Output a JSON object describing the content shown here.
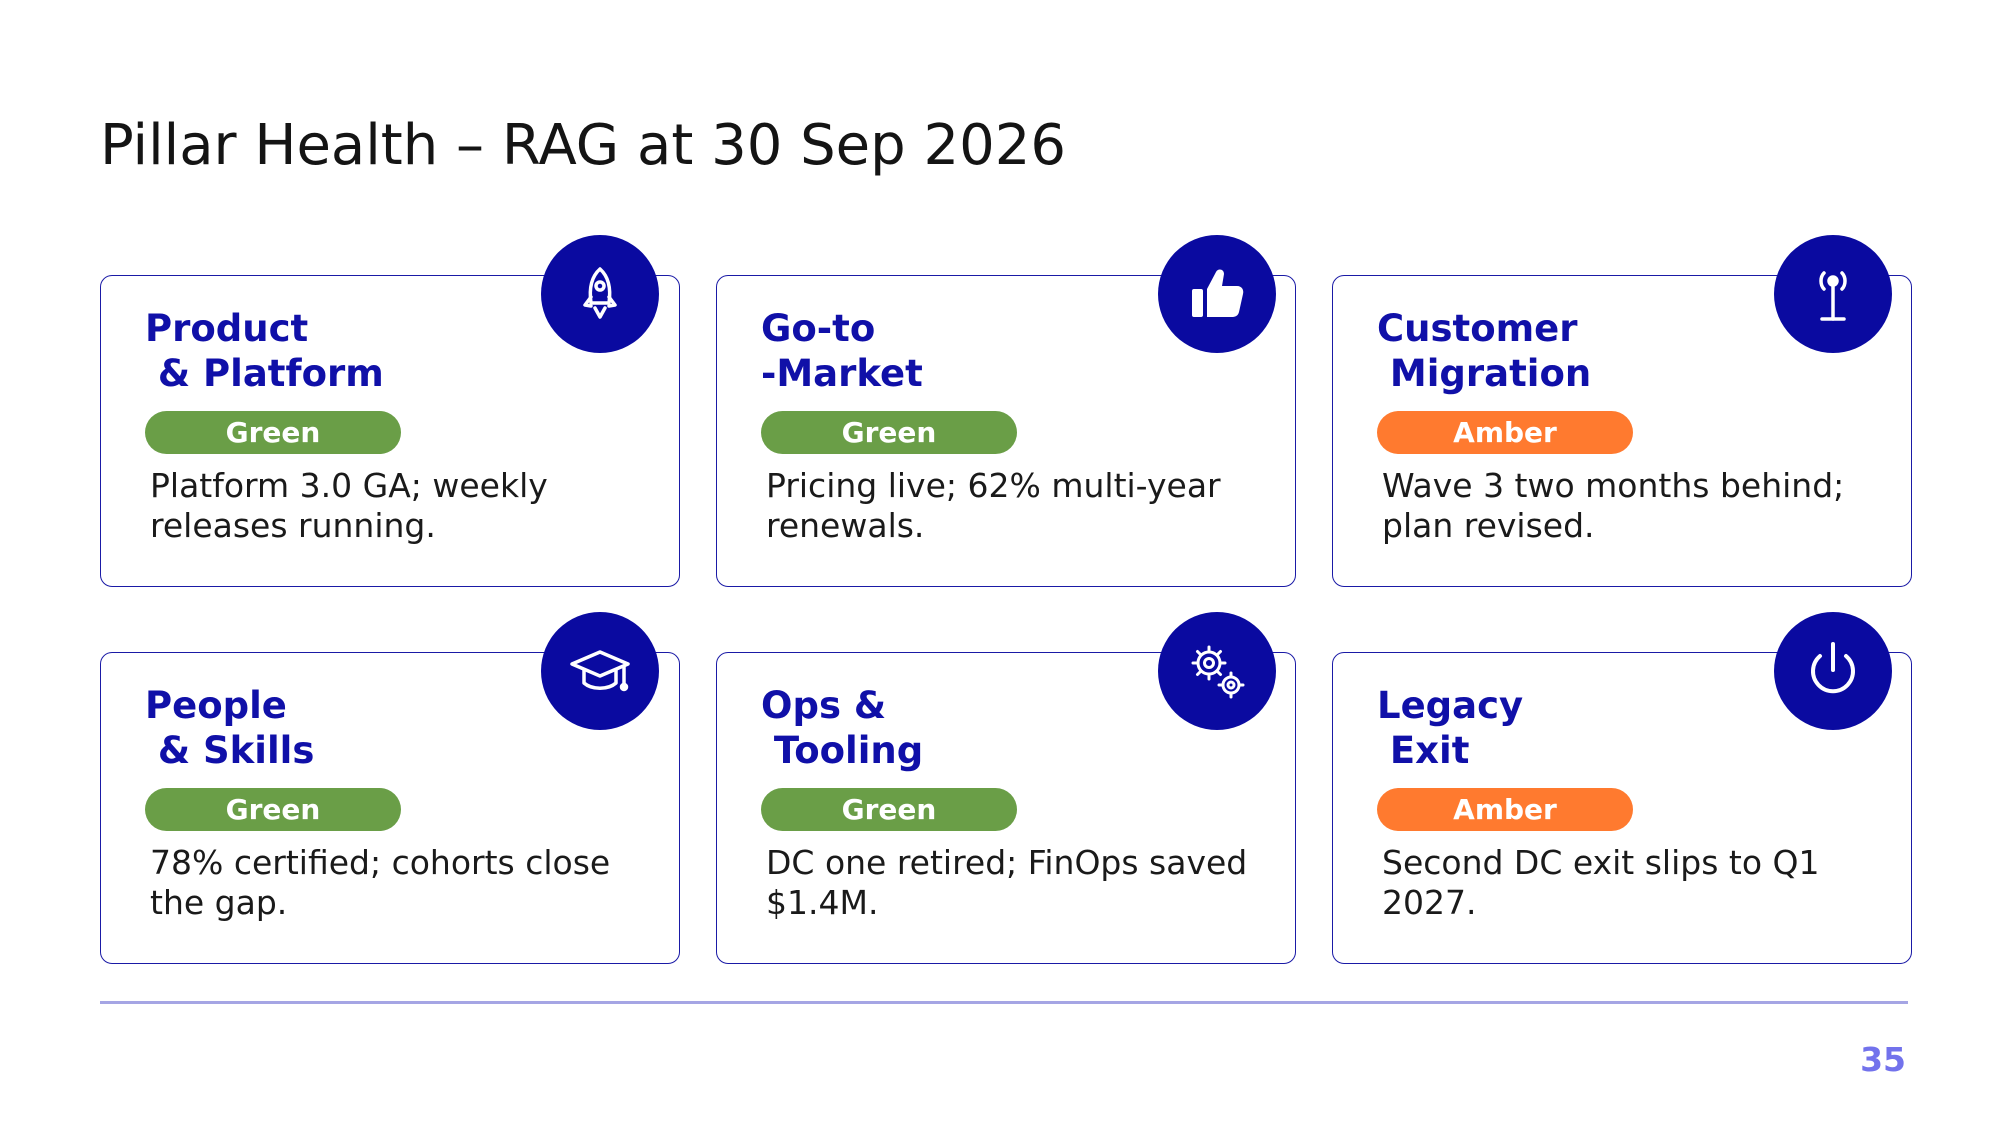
{
  "slide": {
    "title": "Pillar Health – RAG at 30 Sep 2026",
    "page_number": "35"
  },
  "colors": {
    "green": "#6a9e47",
    "amber": "#ff7a2f",
    "navy": "#0a0aa0"
  },
  "cards": [
    {
      "title": "Product\n & Platform",
      "status": "Green",
      "text": "Platform 3.0 GA; weekly releases running.",
      "icon": "rocket-icon"
    },
    {
      "title": "Go-to\n-Market",
      "status": "Green",
      "text": "Pricing live; 62% multi-year renewals.",
      "icon": "thumbs-up-icon"
    },
    {
      "title": "Customer\n Migration",
      "status": "Amber",
      "text": "Wave 3 two months behind; plan revised.",
      "icon": "antenna-icon"
    },
    {
      "title": "People\n & Skills",
      "status": "Green",
      "text": "78% certified; cohorts close the gap.",
      "icon": "graduation-cap-icon"
    },
    {
      "title": "Ops &\n Tooling",
      "status": "Green",
      "text": "DC one retired; FinOps saved $1.4M.",
      "icon": "gears-icon"
    },
    {
      "title": "Legacy\n Exit",
      "status": "Amber",
      "text": "Second DC exit slips to Q1 2027.",
      "icon": "power-icon"
    }
  ]
}
